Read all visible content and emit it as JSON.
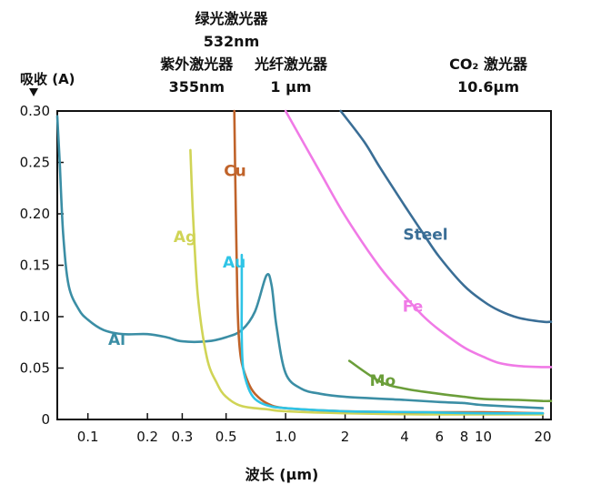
{
  "chart_data": {
    "type": "line",
    "ylabel": "吸收 (A)",
    "xlabel": "波长 (µm)",
    "x_scale": "log",
    "xlim": [
      0.07,
      22
    ],
    "ylim": [
      0,
      0.3
    ],
    "x_ticks": [
      0.1,
      0.2,
      0.3,
      0.5,
      1.0,
      2,
      4,
      6,
      8,
      10,
      20
    ],
    "x_tick_labels": [
      "0.1",
      "0.2",
      "0.3",
      "0.5",
      "1.0",
      "2",
      "4",
      "6",
      "8",
      "10",
      "20"
    ],
    "y_ticks": [
      0,
      0.05,
      0.1,
      0.15,
      0.2,
      0.25,
      0.3
    ],
    "y_tick_labels": [
      "0",
      "0.05",
      "0.10",
      "0.15",
      "0.20",
      "0.25",
      "0.30"
    ],
    "grid": false,
    "annotations": [
      {
        "x": 0.355,
        "lines": [
          "紫外激光器",
          "355nm"
        ]
      },
      {
        "x": 0.532,
        "lines": [
          "绿光激光器",
          "532nm"
        ]
      },
      {
        "x": 1.064,
        "lines": [
          "光纤激光器",
          "1 µm"
        ]
      },
      {
        "x": 10.6,
        "lines": [
          "CO₂ 激光器",
          "10.6µm"
        ]
      }
    ],
    "series": [
      {
        "name": "Al",
        "color": "#3b8ea5",
        "points": [
          [
            0.07,
            0.295
          ],
          [
            0.072,
            0.25
          ],
          [
            0.075,
            0.18
          ],
          [
            0.08,
            0.13
          ],
          [
            0.09,
            0.107
          ],
          [
            0.1,
            0.097
          ],
          [
            0.12,
            0.087
          ],
          [
            0.15,
            0.083
          ],
          [
            0.2,
            0.083
          ],
          [
            0.25,
            0.08
          ],
          [
            0.3,
            0.076
          ],
          [
            0.4,
            0.076
          ],
          [
            0.5,
            0.08
          ],
          [
            0.6,
            0.087
          ],
          [
            0.7,
            0.105
          ],
          [
            0.8,
            0.14
          ],
          [
            0.85,
            0.13
          ],
          [
            0.9,
            0.09
          ],
          [
            1.0,
            0.045
          ],
          [
            1.2,
            0.03
          ],
          [
            1.5,
            0.025
          ],
          [
            2,
            0.022
          ],
          [
            4,
            0.019
          ],
          [
            6,
            0.017
          ],
          [
            8,
            0.016
          ],
          [
            10,
            0.014
          ],
          [
            20,
            0.011
          ]
        ]
      },
      {
        "name": "Ag",
        "color": "#d0d456",
        "points": [
          [
            0.33,
            0.262
          ],
          [
            0.34,
            0.2
          ],
          [
            0.36,
            0.12
          ],
          [
            0.4,
            0.06
          ],
          [
            0.45,
            0.035
          ],
          [
            0.5,
            0.022
          ],
          [
            0.6,
            0.013
          ],
          [
            0.8,
            0.01
          ],
          [
            1,
            0.008
          ],
          [
            2,
            0.006
          ],
          [
            5,
            0.005
          ],
          [
            10,
            0.005
          ],
          [
            20,
            0.005
          ]
        ]
      },
      {
        "name": "Cu",
        "color": "#c0632a",
        "points": [
          [
            0.55,
            0.3
          ],
          [
            0.56,
            0.2
          ],
          [
            0.57,
            0.12
          ],
          [
            0.58,
            0.08
          ],
          [
            0.6,
            0.055
          ],
          [
            0.65,
            0.035
          ],
          [
            0.7,
            0.025
          ],
          [
            0.8,
            0.016
          ],
          [
            1,
            0.011
          ],
          [
            2,
            0.008
          ],
          [
            5,
            0.007
          ],
          [
            10,
            0.007
          ],
          [
            20,
            0.006
          ]
        ]
      },
      {
        "name": "Au",
        "color": "#2ec4e6",
        "points": [
          [
            0.6,
            0.16
          ],
          [
            0.6,
            0.12
          ],
          [
            0.6,
            0.08
          ],
          [
            0.61,
            0.05
          ],
          [
            0.65,
            0.03
          ],
          [
            0.7,
            0.02
          ],
          [
            0.8,
            0.014
          ],
          [
            1,
            0.011
          ],
          [
            2,
            0.008
          ],
          [
            5,
            0.007
          ],
          [
            10,
            0.006
          ],
          [
            20,
            0.006
          ]
        ]
      },
      {
        "name": "Steel",
        "color": "#3a6e96",
        "points": [
          [
            1.9,
            0.3
          ],
          [
            2.5,
            0.27
          ],
          [
            3,
            0.245
          ],
          [
            4,
            0.208
          ],
          [
            5,
            0.18
          ],
          [
            6,
            0.158
          ],
          [
            8,
            0.13
          ],
          [
            10,
            0.115
          ],
          [
            12,
            0.106
          ],
          [
            15,
            0.099
          ],
          [
            20,
            0.095
          ],
          [
            22,
            0.095
          ]
        ]
      },
      {
        "name": "Fe",
        "color": "#f07ae6",
        "points": [
          [
            1.0,
            0.3
          ],
          [
            1.5,
            0.24
          ],
          [
            2,
            0.198
          ],
          [
            3,
            0.148
          ],
          [
            4,
            0.12
          ],
          [
            5,
            0.1
          ],
          [
            6,
            0.087
          ],
          [
            8,
            0.07
          ],
          [
            10,
            0.061
          ],
          [
            12,
            0.055
          ],
          [
            15,
            0.052
          ],
          [
            20,
            0.051
          ],
          [
            22,
            0.051
          ]
        ]
      },
      {
        "name": "Mo",
        "color": "#6b9e3a",
        "points": [
          [
            2.1,
            0.057
          ],
          [
            3,
            0.037
          ],
          [
            4,
            0.03
          ],
          [
            6,
            0.025
          ],
          [
            8,
            0.022
          ],
          [
            10,
            0.02
          ],
          [
            15,
            0.019
          ],
          [
            20,
            0.018
          ],
          [
            22,
            0.018
          ]
        ]
      }
    ],
    "series_label_positions": {
      "Al": [
        0.14,
        0.078
      ],
      "Ag": [
        0.31,
        0.178
      ],
      "Cu": [
        0.555,
        0.242
      ],
      "Au": [
        0.55,
        0.153
      ],
      "Steel": [
        5.1,
        0.18
      ],
      "Fe": [
        4.4,
        0.11
      ],
      "Mo": [
        3.1,
        0.038
      ]
    }
  }
}
